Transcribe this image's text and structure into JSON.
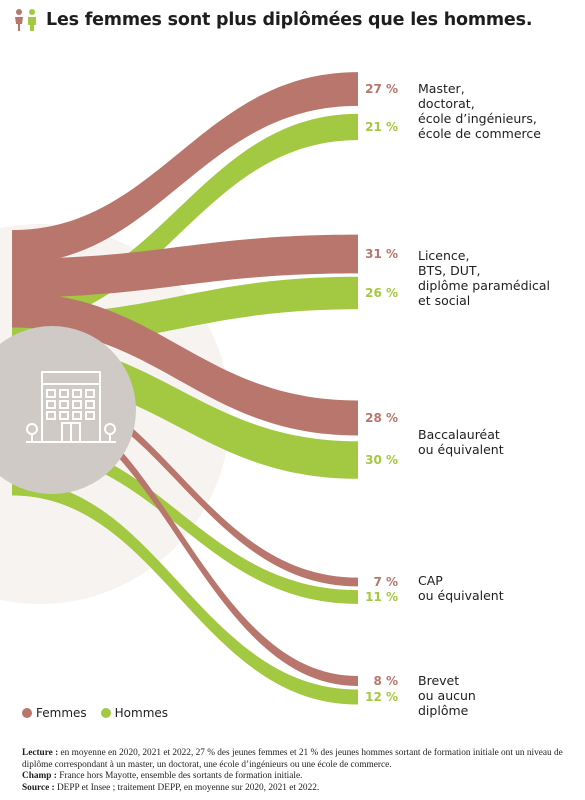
{
  "title": "Les femmes sont plus diplômées que les hommes.",
  "colors": {
    "femmes": "#b8766d",
    "hommes": "#a3c842",
    "circle": "#cfcac6",
    "halo": "#f6f3f1"
  },
  "chart_data": {
    "type": "sankey",
    "title": "Les femmes sont plus diplômées que les hommes.",
    "series": [
      {
        "name": "Femmes",
        "color": "#b8766d",
        "values": [
          27,
          31,
          28,
          7,
          8
        ],
        "labels": [
          "27 %",
          "31 %",
          "28 %",
          "7 %",
          "8 %"
        ]
      },
      {
        "name": "Hommes",
        "color": "#a3c842",
        "values": [
          21,
          26,
          30,
          11,
          12
        ],
        "labels": [
          "21 %",
          "26 %",
          "30 %",
          "11 %",
          "12 %"
        ]
      }
    ],
    "categories": [
      [
        "Master,",
        "doctorat,",
        "école d’ingénieurs,",
        "école de commerce"
      ],
      [
        "Licence,",
        "BTS, DUT,",
        "diplôme paramédical",
        "et social"
      ],
      [
        "Baccalauréat",
        "ou équivalent"
      ],
      [
        "CAP",
        "ou équivalent"
      ],
      [
        "Brevet",
        "ou aucun",
        "diplôme"
      ]
    ],
    "legend": "bottom-left"
  },
  "legend": {
    "femmes": "Femmes",
    "hommes": "Hommes"
  },
  "notes": {
    "lecture_label": "Lecture :",
    "lecture_text": " en moyenne en 2020, 2021 et 2022, 27 % des jeunes femmes et 21 % des jeunes hommes sortant de formation initiale ont un niveau de diplôme correspondant à un master, un doctorat, une école d’ingénieurs ou une école de commerce.",
    "champ_label": "Champ :",
    "champ_text": " France hors Mayotte, ensemble des sortants de formation initiale.",
    "source_label": "Source :",
    "source_text": " DEPP et Insee ; traitement DEPP, en moyenne sur 2020, 2021 et 2022."
  }
}
